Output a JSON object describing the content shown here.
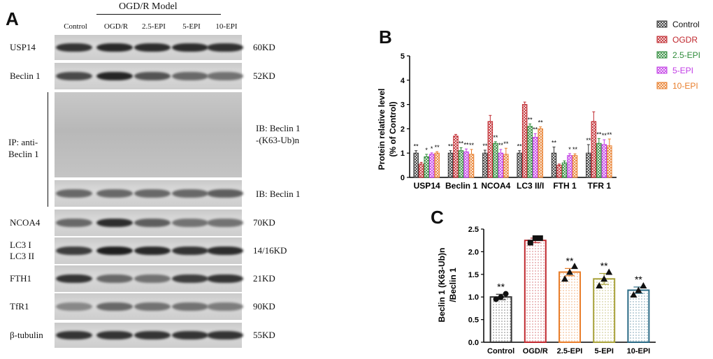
{
  "panel_a": {
    "letter": "A",
    "group_label": "OGD/R Model",
    "lanes": [
      "Control",
      "OGD/R",
      "2.5-EPI",
      "5-EPI",
      "10-EPI"
    ],
    "blots": [
      {
        "label": "USP14",
        "size": "60KD",
        "intensity": [
          0.85,
          0.9,
          0.88,
          0.88,
          0.86
        ]
      },
      {
        "label": "Beclin 1",
        "size": "52KD",
        "intensity": [
          0.75,
          0.92,
          0.7,
          0.6,
          0.55
        ]
      },
      {
        "label": "NCOA4",
        "size": "70KD",
        "intensity": [
          0.6,
          0.88,
          0.65,
          0.55,
          0.55
        ]
      },
      {
        "label": "LC3 I\nLC3 II",
        "size": "14/16KD",
        "intensity": [
          0.8,
          0.95,
          0.9,
          0.85,
          0.88
        ]
      },
      {
        "label": "FTH1",
        "size": "21KD",
        "intensity": [
          0.85,
          0.6,
          0.55,
          0.8,
          0.85
        ]
      },
      {
        "label": "TfR1",
        "size": "90KD",
        "intensity": [
          0.45,
          0.6,
          0.55,
          0.55,
          0.5
        ]
      },
      {
        "label": "β-tubulin",
        "size": "55KD",
        "intensity": [
          0.85,
          0.85,
          0.85,
          0.85,
          0.85
        ]
      }
    ],
    "ip_label_line1": "IP: anti-",
    "ip_label_line2": "Beclin 1",
    "ib_ub_line1": "IB: Beclin 1",
    "ib_ub_line2": "-(K63-Ub)n",
    "ib_beclin": "IB: Beclin 1"
  },
  "panel_b": {
    "letter": "B",
    "chart_data": {
      "type": "bar",
      "ylabel_line1": "Protein relative level",
      "ylabel_line2": "(% of Control)",
      "ylim": [
        0,
        5
      ],
      "yticks": [
        "0",
        "1",
        "2",
        "3",
        "4",
        "5"
      ],
      "categories": [
        "USP14",
        "Beclin 1",
        "NCOA4",
        "LC3 II/I",
        "FTH 1",
        "TFR 1"
      ],
      "series": [
        {
          "name": "Control",
          "color": "#333333",
          "values": [
            1.0,
            1.0,
            1.0,
            1.0,
            1.0,
            1.0
          ],
          "errors": [
            0.1,
            0.1,
            0.12,
            0.1,
            0.25,
            0.35
          ],
          "stars": [
            "**",
            "**",
            "**",
            "**",
            "**",
            "**"
          ]
        },
        {
          "name": "OGDR",
          "color": "#c0272d",
          "values": [
            0.55,
            1.7,
            2.3,
            3.0,
            0.5,
            2.3
          ],
          "errors": [
            0.07,
            0.07,
            0.25,
            0.1,
            0.05,
            0.4
          ],
          "stars": [
            "",
            "",
            "",
            "",
            "",
            ""
          ]
        },
        {
          "name": "2.5-EPI",
          "color": "#2e8b3a",
          "values": [
            0.85,
            1.1,
            1.4,
            2.1,
            0.6,
            1.4
          ],
          "errors": [
            0.1,
            0.12,
            0.07,
            0.1,
            0.08,
            0.2
          ],
          "stars": [
            "*",
            "**",
            "**",
            "**",
            "",
            "**"
          ]
        },
        {
          "name": "5-EPI",
          "color": "#c23ce6",
          "values": [
            0.95,
            1.05,
            1.0,
            1.65,
            0.9,
            1.35
          ],
          "errors": [
            0.06,
            0.12,
            0.15,
            0.15,
            0.08,
            0.2
          ],
          "stars": [
            "*",
            "**",
            "**",
            "**",
            "*",
            "**"
          ]
        },
        {
          "name": "10-EPI",
          "color": "#e87d2a",
          "values": [
            1.0,
            0.95,
            0.95,
            2.0,
            0.9,
            1.3
          ],
          "errors": [
            0.06,
            0.2,
            0.25,
            0.08,
            0.07,
            0.28
          ],
          "stars": [
            "**",
            "**",
            "**",
            "**",
            "**",
            "**"
          ]
        }
      ]
    }
  },
  "panel_c": {
    "letter": "C",
    "chart_data": {
      "type": "bar",
      "ylabel_line1": "Beclin 1 (K63-Ub)n",
      "ylabel_line2": "/Beclin 1",
      "ylim": [
        0,
        2.5
      ],
      "yticks": [
        "0.0",
        "0.5",
        "1.0",
        "1.5",
        "2.0",
        "2.5"
      ],
      "categories": [
        "Control",
        "OGD/R",
        "2.5-EPI",
        "5-EPI",
        "10-EPI"
      ],
      "values": [
        1.0,
        2.25,
        1.55,
        1.4,
        1.15
      ],
      "errors": [
        0.06,
        0.05,
        0.08,
        0.12,
        0.07
      ],
      "points": [
        [
          0.95,
          1.0,
          1.07
        ],
        [
          2.2,
          2.3,
          2.3
        ],
        [
          1.4,
          1.55,
          1.68
        ],
        [
          1.25,
          1.4,
          1.55
        ],
        [
          1.05,
          1.15,
          1.25
        ]
      ],
      "colors": [
        "#333333",
        "#c0272d",
        "#e87d2a",
        "#a8a23a",
        "#2a6a85"
      ],
      "stars": [
        "**",
        "",
        "**",
        "**",
        "**"
      ]
    }
  }
}
